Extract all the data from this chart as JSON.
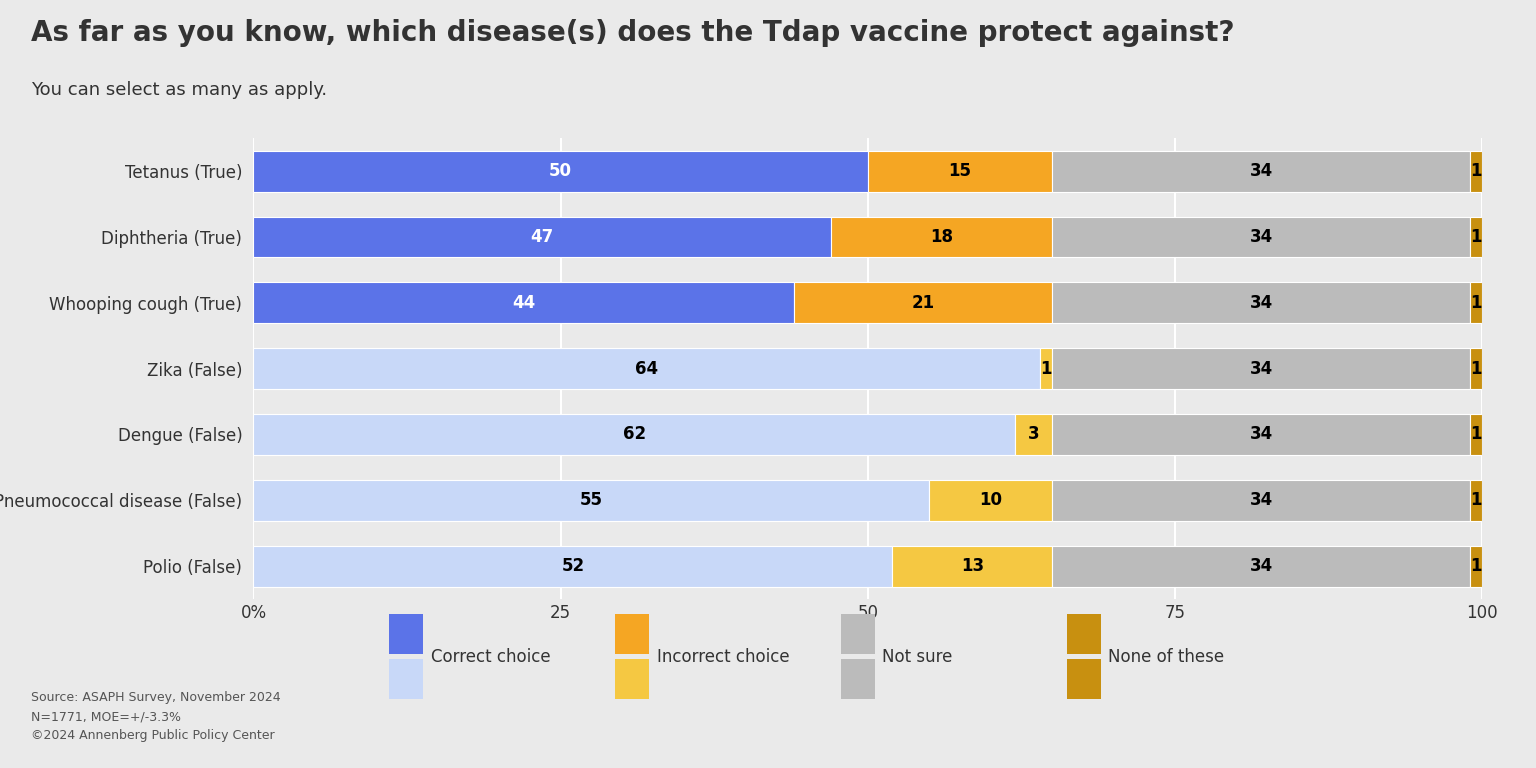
{
  "title": "As far as you know, which disease(s) does the Tdap vaccine protect against?",
  "subtitle": "You can select as many as apply.",
  "categories": [
    "Tetanus (True)",
    "Diphtheria (True)",
    "Whooping cough (True)",
    "Zika (False)",
    "Dengue (False)",
    "Pneumococcal disease (False)",
    "Polio (False)"
  ],
  "is_true": [
    true,
    true,
    true,
    false,
    false,
    false,
    false
  ],
  "correct_or_incorrect_choice": [
    50,
    47,
    44,
    64,
    62,
    55,
    52
  ],
  "second_segment": [
    15,
    18,
    21,
    1,
    3,
    10,
    13
  ],
  "not_sure": [
    34,
    34,
    34,
    34,
    34,
    34,
    34
  ],
  "none_of_these": [
    1,
    1,
    1,
    1,
    1,
    1,
    1
  ],
  "colors": {
    "correct_true": "#5B73E8",
    "correct_false": "#C8D8F8",
    "incorrect_true": "#F5A623",
    "incorrect_false": "#F5C842",
    "not_sure": "#BBBBBB",
    "none_of_these": "#C89010"
  },
  "background_color": "#EAEAEA",
  "text_color": "#333333",
  "title_fontsize": 20,
  "subtitle_fontsize": 13,
  "bar_label_fontsize": 12,
  "tick_fontsize": 12,
  "legend_fontsize": 12,
  "source_text": "Source: ASAPH Survey, November 2024\nN=1771, MOE=+/-3.3%\n©2024 Annenberg Public Policy Center",
  "xlim": [
    0,
    100
  ],
  "xticks": [
    0,
    25,
    50,
    75,
    100
  ],
  "xticklabels": [
    "0%",
    "25",
    "50",
    "75",
    "100"
  ],
  "legend_labels": [
    "Correct choice",
    "Incorrect choice",
    "Not sure",
    "None of these"
  ]
}
